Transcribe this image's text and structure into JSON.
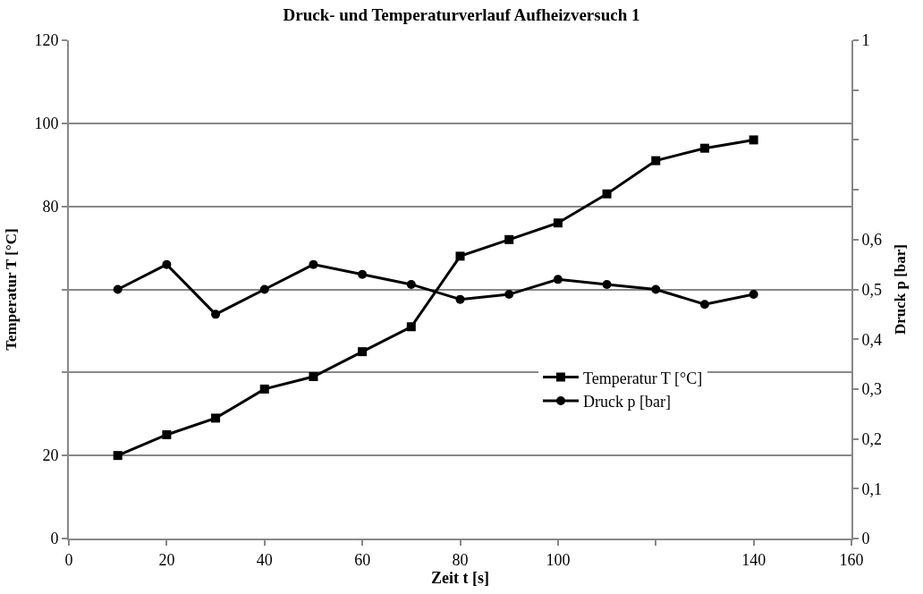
{
  "chart_data": {
    "type": "line",
    "title": "Druck- und Temperaturverlauf Aufheizversuch 1",
    "xlabel": "Zeit t [s]",
    "ylabel": "Temperatur T [°C]",
    "y2label": "Druck p [bar]",
    "x": [
      10,
      20,
      30,
      40,
      50,
      60,
      70,
      80,
      90,
      100,
      110,
      120,
      130,
      140
    ],
    "series": [
      {
        "name": "Temperatur T [°C]",
        "color": "#000000",
        "marker": "square",
        "values": [
          20,
          25,
          29,
          36,
          39,
          45,
          51,
          68,
          72,
          76,
          83,
          91,
          94,
          96
        ]
      },
      {
        "name": "Druck p [bar]",
        "color": "#000000",
        "marker": "circle",
        "axis": "y2",
        "values": [
          0.5,
          0.55,
          0.45,
          0.5,
          0.55,
          0.53,
          0.51,
          0.48,
          0.49,
          0.52,
          0.51,
          0.5,
          0.47,
          0.49
        ]
      }
    ],
    "xlim": [
      0,
      160
    ],
    "xticks": [
      0,
      20,
      40,
      60,
      80,
      100,
      {
        "value": 120,
        "label": null
      },
      140,
      160
    ],
    "ylim": [
      0,
      120
    ],
    "yticks": [
      0,
      20,
      {
        "value": 40,
        "label": null
      },
      {
        "value": 60,
        "label": null
      },
      80,
      100,
      120
    ],
    "y2lim": [
      0,
      1
    ],
    "y2ticks": [
      0,
      {
        "value": 0.1,
        "label": "0,1"
      },
      {
        "value": 0.2,
        "label": "0,2"
      },
      {
        "value": 0.3,
        "label": "0,3"
      },
      {
        "value": 0.4,
        "label": "0,4"
      },
      {
        "value": 0.5,
        "label": "0,5"
      },
      {
        "value": 0.6,
        "label": "0,6"
      },
      {
        "value": 0.7,
        "label": null
      },
      {
        "value": 0.8,
        "label": null
      },
      {
        "value": 0.9,
        "label": null
      },
      1
    ],
    "grid": "y",
    "legend": "right",
    "line_style": "solid"
  }
}
